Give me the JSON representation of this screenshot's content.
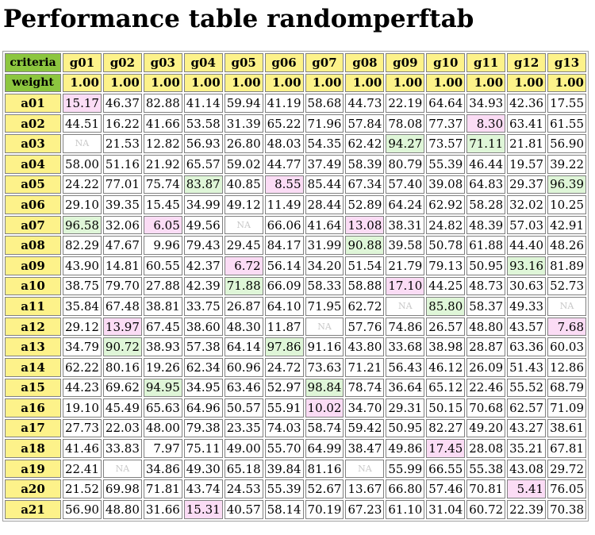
{
  "title": "Performance table randomperftab",
  "colors": {
    "header_bg": "#fdf28a",
    "corner_bg": "#8cc63f",
    "best_bg": "#dff6d8",
    "worst_bg": "#fbdcf5",
    "na_text": "#c8c8c8"
  },
  "table": {
    "criteria_label": "criteria",
    "weight_label": "weight",
    "columns": [
      "g01",
      "g02",
      "g03",
      "g04",
      "g05",
      "g06",
      "g07",
      "g08",
      "g09",
      "g10",
      "g11",
      "g12",
      "g13"
    ],
    "weights": [
      "1.00",
      "1.00",
      "1.00",
      "1.00",
      "1.00",
      "1.00",
      "1.00",
      "1.00",
      "1.00",
      "1.00",
      "1.00",
      "1.00",
      "1.00"
    ],
    "rows": [
      {
        "label": "a01",
        "cells": [
          {
            "v": "15.17",
            "s": "worst"
          },
          {
            "v": "46.37"
          },
          {
            "v": "82.88"
          },
          {
            "v": "41.14"
          },
          {
            "v": "59.94"
          },
          {
            "v": "41.19"
          },
          {
            "v": "58.68"
          },
          {
            "v": "44.73"
          },
          {
            "v": "22.19"
          },
          {
            "v": "64.64"
          },
          {
            "v": "34.93"
          },
          {
            "v": "42.36"
          },
          {
            "v": "17.55"
          }
        ]
      },
      {
        "label": "a02",
        "cells": [
          {
            "v": "44.51"
          },
          {
            "v": "16.22"
          },
          {
            "v": "41.66"
          },
          {
            "v": "53.58"
          },
          {
            "v": "31.39"
          },
          {
            "v": "65.22"
          },
          {
            "v": "71.96"
          },
          {
            "v": "57.84"
          },
          {
            "v": "78.08"
          },
          {
            "v": "77.37"
          },
          {
            "v": "8.30",
            "s": "worst"
          },
          {
            "v": "63.41"
          },
          {
            "v": "61.55"
          }
        ]
      },
      {
        "label": "a03",
        "cells": [
          {
            "v": "NA",
            "s": "na"
          },
          {
            "v": "21.53"
          },
          {
            "v": "12.82"
          },
          {
            "v": "56.93"
          },
          {
            "v": "26.80"
          },
          {
            "v": "48.03"
          },
          {
            "v": "54.35"
          },
          {
            "v": "62.42"
          },
          {
            "v": "94.27",
            "s": "best"
          },
          {
            "v": "73.57"
          },
          {
            "v": "71.11",
            "s": "best"
          },
          {
            "v": "21.81"
          },
          {
            "v": "56.90"
          }
        ]
      },
      {
        "label": "a04",
        "cells": [
          {
            "v": "58.00"
          },
          {
            "v": "51.16"
          },
          {
            "v": "21.92"
          },
          {
            "v": "65.57"
          },
          {
            "v": "59.02"
          },
          {
            "v": "44.77"
          },
          {
            "v": "37.49"
          },
          {
            "v": "58.39"
          },
          {
            "v": "80.79"
          },
          {
            "v": "55.39"
          },
          {
            "v": "46.44"
          },
          {
            "v": "19.57"
          },
          {
            "v": "39.22"
          }
        ]
      },
      {
        "label": "a05",
        "cells": [
          {
            "v": "24.22"
          },
          {
            "v": "77.01"
          },
          {
            "v": "75.74"
          },
          {
            "v": "83.87",
            "s": "best"
          },
          {
            "v": "40.85"
          },
          {
            "v": "8.55",
            "s": "worst"
          },
          {
            "v": "85.44"
          },
          {
            "v": "67.34"
          },
          {
            "v": "57.40"
          },
          {
            "v": "39.08"
          },
          {
            "v": "64.83"
          },
          {
            "v": "29.37"
          },
          {
            "v": "96.39",
            "s": "best"
          }
        ]
      },
      {
        "label": "a06",
        "cells": [
          {
            "v": "29.10"
          },
          {
            "v": "39.35"
          },
          {
            "v": "15.45"
          },
          {
            "v": "34.99"
          },
          {
            "v": "49.12"
          },
          {
            "v": "11.49"
          },
          {
            "v": "28.44"
          },
          {
            "v": "52.89"
          },
          {
            "v": "64.24"
          },
          {
            "v": "62.92"
          },
          {
            "v": "58.28"
          },
          {
            "v": "32.02"
          },
          {
            "v": "10.25"
          }
        ]
      },
      {
        "label": "a07",
        "cells": [
          {
            "v": "96.58",
            "s": "best"
          },
          {
            "v": "32.06"
          },
          {
            "v": "6.05",
            "s": "worst"
          },
          {
            "v": "49.56"
          },
          {
            "v": "NA",
            "s": "na"
          },
          {
            "v": "66.06"
          },
          {
            "v": "41.64"
          },
          {
            "v": "13.08",
            "s": "worst"
          },
          {
            "v": "38.31"
          },
          {
            "v": "24.82"
          },
          {
            "v": "48.39"
          },
          {
            "v": "57.03"
          },
          {
            "v": "42.91"
          }
        ]
      },
      {
        "label": "a08",
        "cells": [
          {
            "v": "82.29"
          },
          {
            "v": "47.67"
          },
          {
            "v": "9.96"
          },
          {
            "v": "79.43"
          },
          {
            "v": "29.45"
          },
          {
            "v": "84.17"
          },
          {
            "v": "31.99"
          },
          {
            "v": "90.88",
            "s": "best"
          },
          {
            "v": "39.58"
          },
          {
            "v": "50.78"
          },
          {
            "v": "61.88"
          },
          {
            "v": "44.40"
          },
          {
            "v": "48.26"
          }
        ]
      },
      {
        "label": "a09",
        "cells": [
          {
            "v": "43.90"
          },
          {
            "v": "14.81"
          },
          {
            "v": "60.55"
          },
          {
            "v": "42.37"
          },
          {
            "v": "6.72",
            "s": "worst"
          },
          {
            "v": "56.14"
          },
          {
            "v": "34.20"
          },
          {
            "v": "51.54"
          },
          {
            "v": "21.79"
          },
          {
            "v": "79.13"
          },
          {
            "v": "50.95"
          },
          {
            "v": "93.16",
            "s": "best"
          },
          {
            "v": "81.89"
          }
        ]
      },
      {
        "label": "a10",
        "cells": [
          {
            "v": "38.75"
          },
          {
            "v": "79.70"
          },
          {
            "v": "27.88"
          },
          {
            "v": "42.39"
          },
          {
            "v": "71.88",
            "s": "best"
          },
          {
            "v": "66.09"
          },
          {
            "v": "58.33"
          },
          {
            "v": "58.88"
          },
          {
            "v": "17.10",
            "s": "worst"
          },
          {
            "v": "44.25"
          },
          {
            "v": "48.73"
          },
          {
            "v": "30.63"
          },
          {
            "v": "52.73"
          }
        ]
      },
      {
        "label": "a11",
        "cells": [
          {
            "v": "35.84"
          },
          {
            "v": "67.48"
          },
          {
            "v": "38.81"
          },
          {
            "v": "33.75"
          },
          {
            "v": "26.87"
          },
          {
            "v": "64.10"
          },
          {
            "v": "71.95"
          },
          {
            "v": "62.72"
          },
          {
            "v": "NA",
            "s": "na"
          },
          {
            "v": "85.80",
            "s": "best"
          },
          {
            "v": "58.37"
          },
          {
            "v": "49.33"
          },
          {
            "v": "NA",
            "s": "na"
          }
        ]
      },
      {
        "label": "a12",
        "cells": [
          {
            "v": "29.12"
          },
          {
            "v": "13.97",
            "s": "worst"
          },
          {
            "v": "67.45"
          },
          {
            "v": "38.60"
          },
          {
            "v": "48.30"
          },
          {
            "v": "11.87"
          },
          {
            "v": "NA",
            "s": "na"
          },
          {
            "v": "57.76"
          },
          {
            "v": "74.86"
          },
          {
            "v": "26.57"
          },
          {
            "v": "48.80"
          },
          {
            "v": "43.57"
          },
          {
            "v": "7.68",
            "s": "worst"
          }
        ]
      },
      {
        "label": "a13",
        "cells": [
          {
            "v": "34.79"
          },
          {
            "v": "90.72",
            "s": "best"
          },
          {
            "v": "38.93"
          },
          {
            "v": "57.38"
          },
          {
            "v": "64.14"
          },
          {
            "v": "97.86",
            "s": "best"
          },
          {
            "v": "91.16"
          },
          {
            "v": "43.80"
          },
          {
            "v": "33.68"
          },
          {
            "v": "38.98"
          },
          {
            "v": "28.87"
          },
          {
            "v": "63.36"
          },
          {
            "v": "60.03"
          }
        ]
      },
      {
        "label": "a14",
        "cells": [
          {
            "v": "62.22"
          },
          {
            "v": "80.16"
          },
          {
            "v": "19.26"
          },
          {
            "v": "62.34"
          },
          {
            "v": "60.96"
          },
          {
            "v": "24.72"
          },
          {
            "v": "73.63"
          },
          {
            "v": "71.21"
          },
          {
            "v": "56.43"
          },
          {
            "v": "46.12"
          },
          {
            "v": "26.09"
          },
          {
            "v": "51.43"
          },
          {
            "v": "12.86"
          }
        ]
      },
      {
        "label": "a15",
        "cells": [
          {
            "v": "44.23"
          },
          {
            "v": "69.62"
          },
          {
            "v": "94.95",
            "s": "best"
          },
          {
            "v": "34.95"
          },
          {
            "v": "63.46"
          },
          {
            "v": "52.97"
          },
          {
            "v": "98.84",
            "s": "best"
          },
          {
            "v": "78.74"
          },
          {
            "v": "36.64"
          },
          {
            "v": "65.12"
          },
          {
            "v": "22.46"
          },
          {
            "v": "55.52"
          },
          {
            "v": "68.79"
          }
        ]
      },
      {
        "label": "a16",
        "cells": [
          {
            "v": "19.10"
          },
          {
            "v": "45.49"
          },
          {
            "v": "65.63"
          },
          {
            "v": "64.96"
          },
          {
            "v": "50.57"
          },
          {
            "v": "55.91"
          },
          {
            "v": "10.02",
            "s": "worst"
          },
          {
            "v": "34.70"
          },
          {
            "v": "29.31"
          },
          {
            "v": "50.15"
          },
          {
            "v": "70.68"
          },
          {
            "v": "62.57"
          },
          {
            "v": "71.09"
          }
        ]
      },
      {
        "label": "a17",
        "cells": [
          {
            "v": "27.73"
          },
          {
            "v": "22.03"
          },
          {
            "v": "48.00"
          },
          {
            "v": "79.38"
          },
          {
            "v": "23.35"
          },
          {
            "v": "74.03"
          },
          {
            "v": "58.74"
          },
          {
            "v": "59.42"
          },
          {
            "v": "50.95"
          },
          {
            "v": "82.27"
          },
          {
            "v": "49.20"
          },
          {
            "v": "43.27"
          },
          {
            "v": "38.61"
          }
        ]
      },
      {
        "label": "a18",
        "cells": [
          {
            "v": "41.46"
          },
          {
            "v": "33.83"
          },
          {
            "v": "7.97"
          },
          {
            "v": "75.11"
          },
          {
            "v": "49.00"
          },
          {
            "v": "55.70"
          },
          {
            "v": "64.99"
          },
          {
            "v": "38.47"
          },
          {
            "v": "49.86"
          },
          {
            "v": "17.45",
            "s": "worst"
          },
          {
            "v": "28.08"
          },
          {
            "v": "35.21"
          },
          {
            "v": "67.81"
          }
        ]
      },
      {
        "label": "a19",
        "cells": [
          {
            "v": "22.41"
          },
          {
            "v": "NA",
            "s": "na"
          },
          {
            "v": "34.86"
          },
          {
            "v": "49.30"
          },
          {
            "v": "65.18"
          },
          {
            "v": "39.84"
          },
          {
            "v": "81.16"
          },
          {
            "v": "NA",
            "s": "na"
          },
          {
            "v": "55.99"
          },
          {
            "v": "66.55"
          },
          {
            "v": "55.38"
          },
          {
            "v": "43.08"
          },
          {
            "v": "29.72"
          }
        ]
      },
      {
        "label": "a20",
        "cells": [
          {
            "v": "21.52"
          },
          {
            "v": "69.98"
          },
          {
            "v": "71.81"
          },
          {
            "v": "43.74"
          },
          {
            "v": "24.53"
          },
          {
            "v": "55.39"
          },
          {
            "v": "52.67"
          },
          {
            "v": "13.67"
          },
          {
            "v": "66.80"
          },
          {
            "v": "57.46"
          },
          {
            "v": "70.81"
          },
          {
            "v": "5.41",
            "s": "worst"
          },
          {
            "v": "76.05"
          }
        ]
      },
      {
        "label": "a21",
        "cells": [
          {
            "v": "56.90"
          },
          {
            "v": "48.80"
          },
          {
            "v": "31.66"
          },
          {
            "v": "15.31",
            "s": "worst"
          },
          {
            "v": "40.57"
          },
          {
            "v": "58.14"
          },
          {
            "v": "70.19"
          },
          {
            "v": "67.23"
          },
          {
            "v": "61.10"
          },
          {
            "v": "31.04"
          },
          {
            "v": "60.72"
          },
          {
            "v": "22.39"
          },
          {
            "v": "70.38"
          }
        ]
      }
    ]
  }
}
